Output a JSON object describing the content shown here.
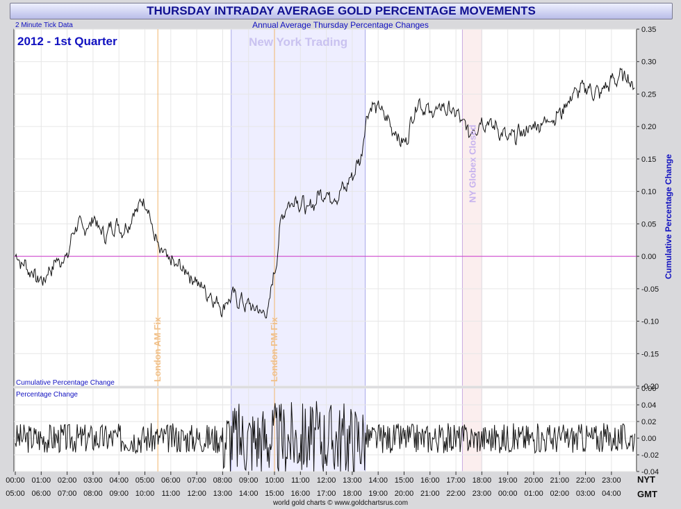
{
  "title": "THURSDAY INTRADAY AVERAGE GOLD PERCENTAGE MOVEMENTS",
  "chart_data": {
    "type": "line",
    "subtitle": "Annual Average Thursday Percentage Changes",
    "tick_note": "2 Minute Tick Data",
    "period_label": "2012 - 1st Quarter",
    "credit": "world gold charts © www.goldchartsrus.com",
    "colors": {
      "line": "#111111",
      "accent": "#1010c0",
      "zero_line": "#cc33cc",
      "ny_band": "#eeeeff",
      "globex_band": "#fbeeee",
      "fix_line": "#f2b56b"
    },
    "upper_panel": {
      "label": "Cumulative Percentage Change",
      "ylabel": "Cumulative Percentage Change",
      "ylim": [
        -0.2,
        0.35
      ],
      "yticks": [
        "0.35",
        "0.30",
        "0.25",
        "0.20",
        "0.15",
        "0.10",
        "0.05",
        "0.00",
        "-0.05",
        "-0.10",
        "-0.15",
        "-0.20"
      ],
      "yvalues": [
        0.35,
        0.3,
        0.25,
        0.2,
        0.15,
        0.1,
        0.05,
        0.0,
        -0.05,
        -0.1,
        -0.15,
        -0.2
      ],
      "series_points": [
        [
          0,
          0.0
        ],
        [
          0.5,
          -0.02
        ],
        [
          1.0,
          -0.04
        ],
        [
          1.5,
          -0.01
        ],
        [
          2.0,
          0.0
        ],
        [
          2.3,
          0.05
        ],
        [
          2.7,
          0.04
        ],
        [
          3.0,
          0.06
        ],
        [
          3.4,
          0.03
        ],
        [
          3.8,
          0.05
        ],
        [
          4.2,
          0.04
        ],
        [
          4.6,
          0.07
        ],
        [
          5.0,
          0.09
        ],
        [
          5.3,
          0.04
        ],
        [
          5.5,
          0.01
        ],
        [
          6.0,
          -0.01
        ],
        [
          6.5,
          -0.02
        ],
        [
          7.0,
          -0.04
        ],
        [
          7.5,
          -0.06
        ],
        [
          8.0,
          -0.08
        ],
        [
          8.3,
          -0.06
        ],
        [
          8.7,
          -0.07
        ],
        [
          9.2,
          -0.08
        ],
        [
          9.7,
          -0.09
        ],
        [
          10.0,
          -0.02
        ],
        [
          10.3,
          0.07
        ],
        [
          10.8,
          0.09
        ],
        [
          11.3,
          0.07
        ],
        [
          11.8,
          0.1
        ],
        [
          12.3,
          0.09
        ],
        [
          12.8,
          0.11
        ],
        [
          13.3,
          0.15
        ],
        [
          13.6,
          0.23
        ],
        [
          14.0,
          0.23
        ],
        [
          14.5,
          0.2
        ],
        [
          15.0,
          0.17
        ],
        [
          15.5,
          0.24
        ],
        [
          16.0,
          0.22
        ],
        [
          16.5,
          0.23
        ],
        [
          17.0,
          0.22
        ],
        [
          17.5,
          0.19
        ],
        [
          18.0,
          0.21
        ],
        [
          18.5,
          0.2
        ],
        [
          19.0,
          0.18
        ],
        [
          19.5,
          0.19
        ],
        [
          20.0,
          0.2
        ],
        [
          20.5,
          0.21
        ],
        [
          21.0,
          0.22
        ],
        [
          21.5,
          0.25
        ],
        [
          22.0,
          0.26
        ],
        [
          22.5,
          0.25
        ],
        [
          23.0,
          0.27
        ],
        [
          23.5,
          0.28
        ],
        [
          23.9,
          0.26
        ]
      ],
      "annotations": [
        "New York Trading",
        "London AM Fix",
        "London PM Fix",
        "NY Globex Closed"
      ]
    },
    "lower_panel": {
      "label": "Percentage Change",
      "ylim": [
        -0.04,
        0.06
      ],
      "yticks": [
        "0.06",
        "0.04",
        "0.02",
        "0.00",
        "-0.02",
        "-0.04"
      ],
      "yvalues": [
        0.06,
        0.04,
        0.02,
        0.0,
        -0.02,
        -0.04
      ]
    },
    "x_axis": {
      "nyt_label": "NYT",
      "gmt_label": "GMT",
      "nyt_ticks": [
        "00:00",
        "01:00",
        "02:00",
        "03:00",
        "04:00",
        "05:00",
        "06:00",
        "07:00",
        "08:00",
        "09:00",
        "10:00",
        "11:00",
        "12:00",
        "13:00",
        "14:00",
        "15:00",
        "16:00",
        "17:00",
        "18:00",
        "19:00",
        "20:00",
        "21:00",
        "22:00",
        "23:00"
      ],
      "gmt_ticks": [
        "05:00",
        "06:00",
        "07:00",
        "08:00",
        "09:00",
        "10:00",
        "11:00",
        "12:00",
        "13:00",
        "14:00",
        "15:00",
        "16:00",
        "17:00",
        "18:00",
        "19:00",
        "20:00",
        "21:00",
        "22:00",
        "23:00",
        "00:00",
        "01:00",
        "02:00",
        "03:00",
        "04:00"
      ],
      "xlim": [
        0,
        24
      ],
      "ny_session": [
        8.33,
        13.5
      ],
      "globex_closed": [
        17.25,
        18.0
      ],
      "london_am_fix": 5.5,
      "london_pm_fix": 10.0
    }
  }
}
